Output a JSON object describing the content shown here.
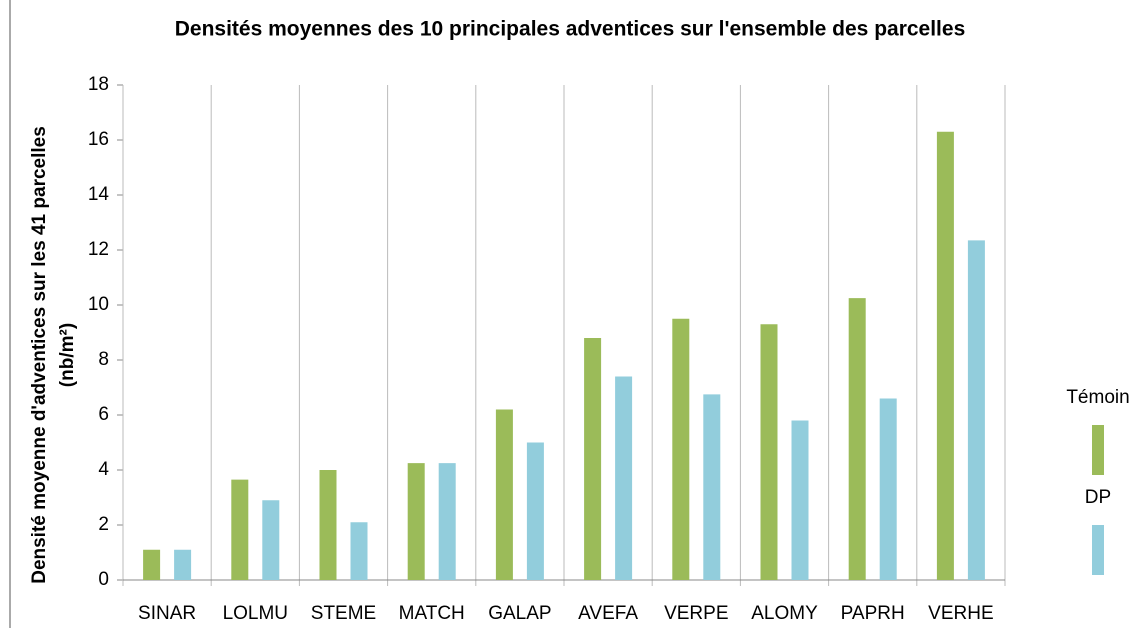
{
  "chart_data": {
    "type": "bar",
    "title": "Densités moyennes des 10 principales adventices sur l'ensemble des parcelles",
    "ylabel": [
      "Densité moyenne d'adventices sur les 41 parcelles",
      "(nb/m²)"
    ],
    "categories": [
      "SINAR",
      "LOLMU",
      "STEME",
      "MATCH",
      "GALAP",
      "AVEFA",
      "VERPE",
      "ALOMY",
      "PAPRH",
      "VERHE"
    ],
    "series": [
      {
        "name": "Témoin",
        "color": "#9bbb59",
        "values": [
          1.1,
          3.65,
          4.0,
          4.25,
          6.2,
          8.8,
          9.5,
          9.3,
          10.25,
          16.3
        ]
      },
      {
        "name": "DP",
        "color": "#92cddc",
        "values": [
          1.1,
          2.9,
          2.1,
          4.25,
          5.0,
          7.4,
          6.75,
          5.8,
          6.6,
          12.35
        ]
      }
    ],
    "ylim": [
      0,
      18
    ],
    "yticks": [
      0,
      2,
      4,
      6,
      8,
      10,
      12,
      14,
      16,
      18
    ],
    "legend": "right"
  }
}
